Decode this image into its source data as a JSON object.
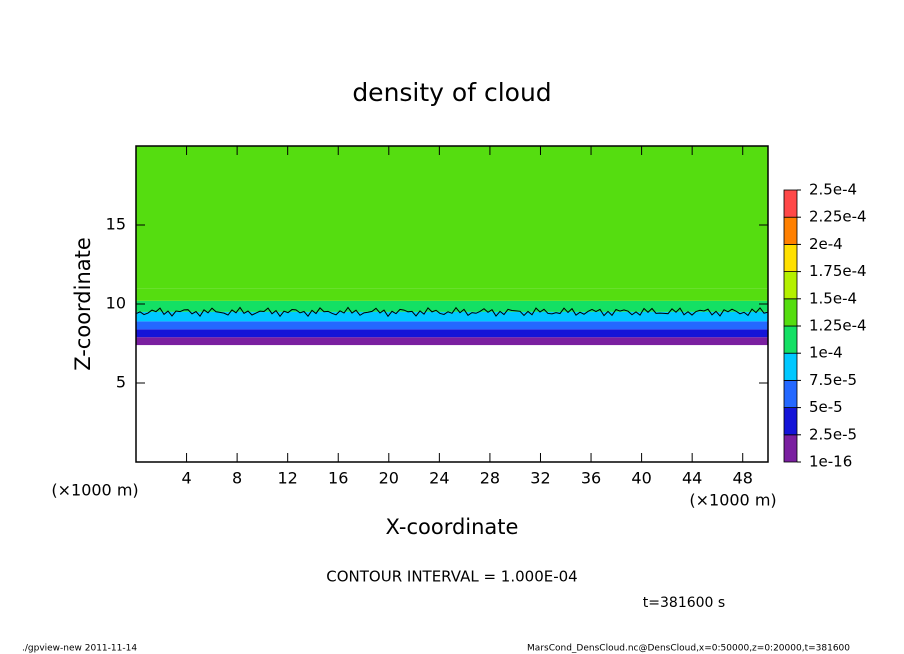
{
  "chart_data": {
    "type": "contour",
    "title": "density of cloud",
    "x_label": "X-coordinate",
    "y_label": "Z-coordinate",
    "x_unit": "(×1000 m)",
    "y_unit": "(×1000 m)",
    "xlim": [
      0,
      50
    ],
    "ylim": [
      0,
      20
    ],
    "xticks": [
      4,
      8,
      12,
      16,
      20,
      24,
      28,
      32,
      36,
      40,
      44,
      48
    ],
    "yticks": [
      5,
      10,
      15
    ],
    "z_bins": [
      7.4,
      7.9,
      8.4,
      8.9,
      9.5,
      10.2,
      11,
      20
    ],
    "values": [
      1e-05,
      3e-05,
      5.5e-05,
      8.5e-05,
      0.00011,
      0.00013,
      0.000135
    ],
    "contour_level": 0.0001,
    "levels": [
      {
        "value": 1e-16,
        "label": "1e-16"
      },
      {
        "value": 2.5e-05,
        "label": "2.5e-5"
      },
      {
        "value": 5e-05,
        "label": "5e-5"
      },
      {
        "value": 7.5e-05,
        "label": "7.5e-5"
      },
      {
        "value": 0.0001,
        "label": "1e-4"
      },
      {
        "value": 0.000125,
        "label": "1.25e-4"
      },
      {
        "value": 0.00015,
        "label": "1.5e-4"
      },
      {
        "value": 0.000175,
        "label": "1.75e-4"
      },
      {
        "value": 0.0002,
        "label": "2e-4"
      },
      {
        "value": 0.000225,
        "label": "2.25e-4"
      },
      {
        "value": 0.00025,
        "label": "2.5e-4"
      }
    ],
    "colors": [
      "#7a1fa0",
      "#1414d8",
      "#2468ff",
      "#00c8ff",
      "#14e064",
      "#55dd10",
      "#b4f000",
      "#ffe000",
      "#ff8000",
      "#ff4848"
    ],
    "contour_interval": "CONTOUR INTERVAL = 1.000E-04",
    "time_label": "t=381600 s"
  },
  "footer": {
    "left": "./gpview-new  2011-11-14",
    "right": "MarsCond_DensCloud.nc@DensCloud,x=0:50000,z=0:20000,t=381600"
  }
}
